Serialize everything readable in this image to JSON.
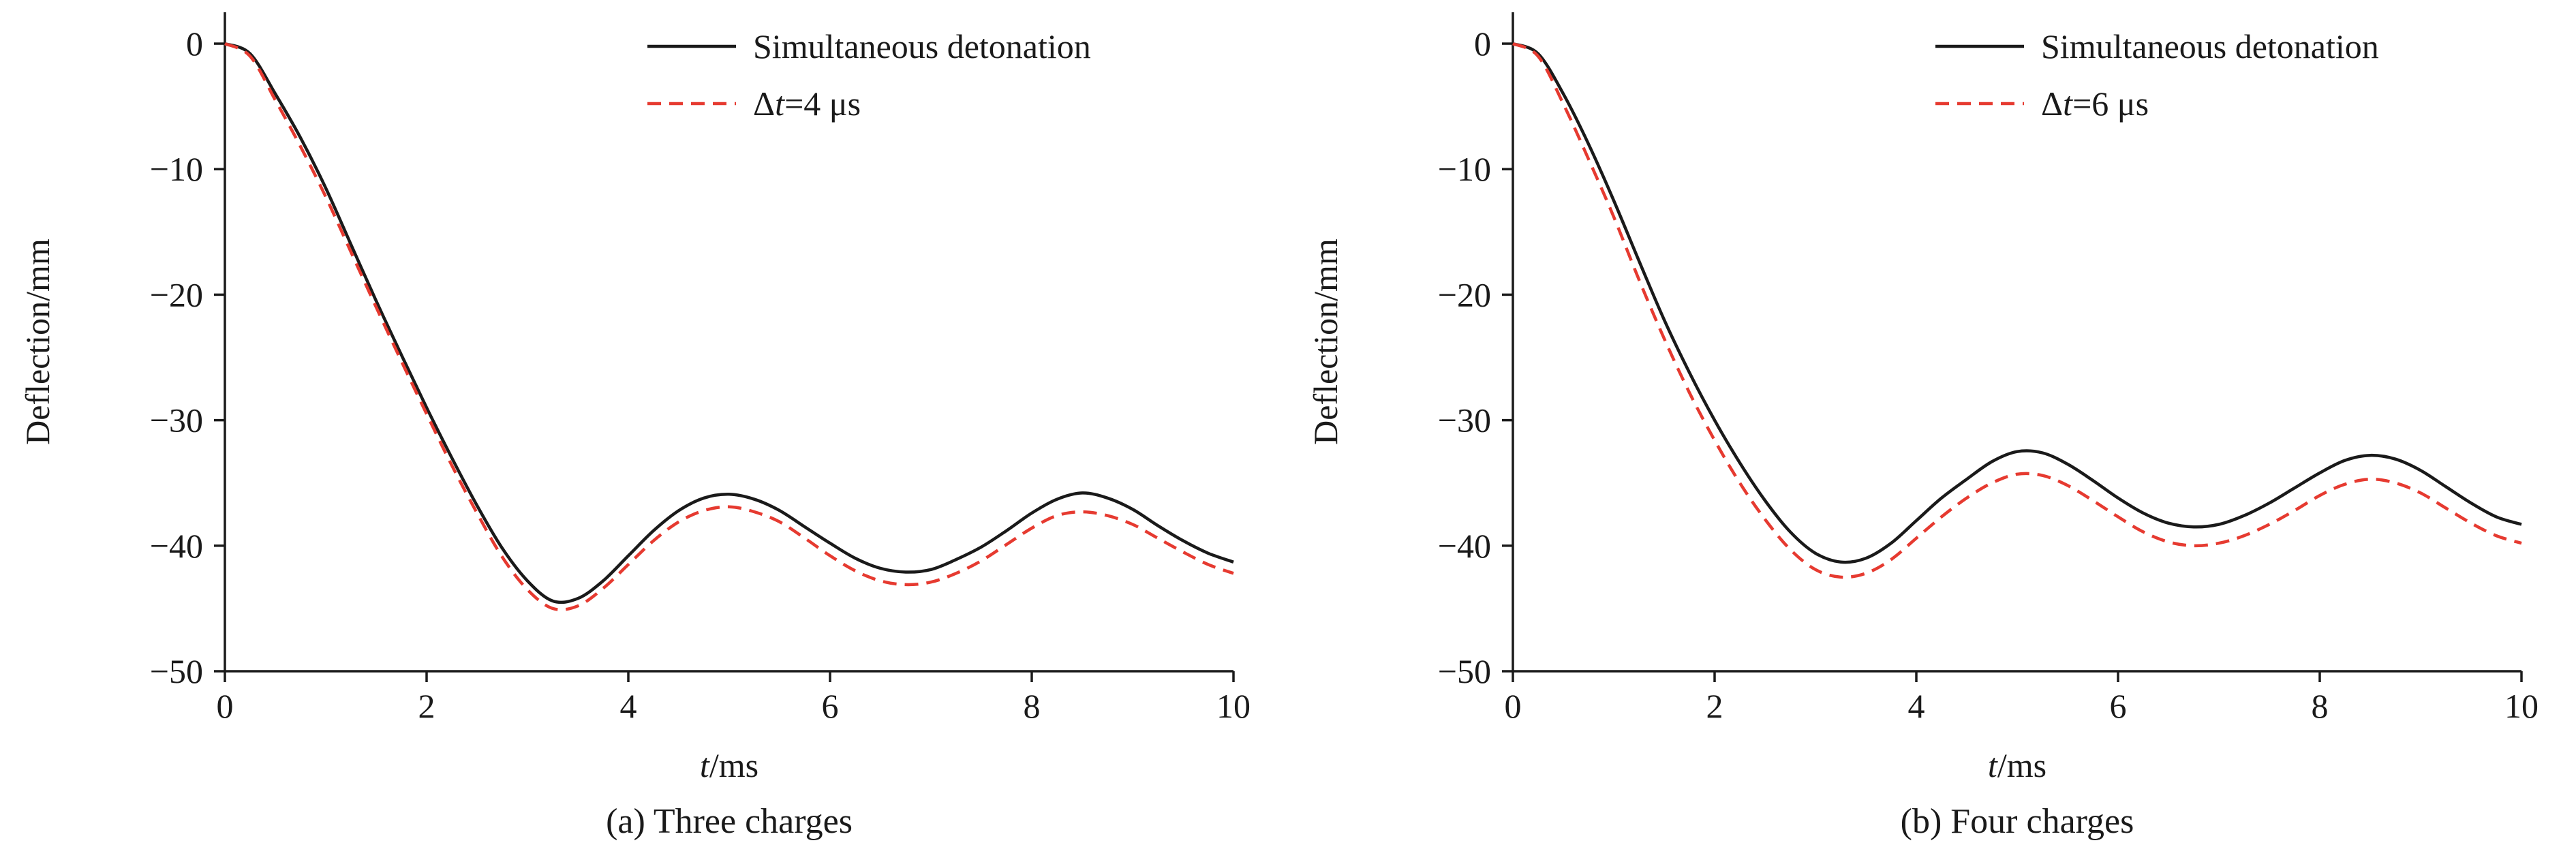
{
  "figure": {
    "background": "#ffffff",
    "axis_color": "#1a1a1a"
  },
  "chart_data": [
    {
      "type": "line",
      "caption": "(a) Three charges",
      "ylabel": "Deflection/mm",
      "xlabel": "t/ms",
      "xlabel_parts": [
        {
          "text": "t",
          "italic": true
        },
        {
          "text": "/ms",
          "italic": false
        }
      ],
      "xlim": [
        0,
        10
      ],
      "ylim": [
        -50,
        2.5
      ],
      "xticks": [
        0,
        2,
        4,
        6,
        8,
        10
      ],
      "yticks": [
        0,
        -10,
        -20,
        -30,
        -40,
        -50
      ],
      "grid": false,
      "legend_position": "top-right",
      "x": [
        0,
        0.25,
        0.5,
        0.75,
        1,
        1.25,
        1.5,
        1.75,
        2,
        2.25,
        2.5,
        2.75,
        3,
        3.25,
        3.5,
        3.75,
        4,
        4.25,
        4.5,
        4.75,
        5,
        5.25,
        5.5,
        5.75,
        6,
        6.25,
        6.5,
        6.75,
        7,
        7.25,
        7.5,
        7.75,
        8,
        8.25,
        8.5,
        8.75,
        9,
        9.25,
        9.5,
        9.75,
        10
      ],
      "series": [
        {
          "name": "Simultaneous detonation",
          "label_parts": [
            {
              "text": "Simultaneous detonation",
              "italic": false
            }
          ],
          "color": "#1a1a1a",
          "dash": null,
          "y": [
            0,
            -0.8,
            -4,
            -7.5,
            -11.5,
            -16,
            -20.5,
            -24.8,
            -29,
            -33,
            -36.8,
            -40.2,
            -42.8,
            -44.4,
            -44.2,
            -42.8,
            -40.8,
            -38.8,
            -37.2,
            -36.2,
            -35.9,
            -36.3,
            -37.2,
            -38.5,
            -39.8,
            -41,
            -41.8,
            -42.1,
            -41.9,
            -41.1,
            -40.1,
            -38.8,
            -37.4,
            -36.3,
            -35.8,
            -36.2,
            -37.1,
            -38.4,
            -39.6,
            -40.6,
            -41.3
          ]
        },
        {
          "name": "Δt=4 μs",
          "label_parts": [
            {
              "text": "Δ",
              "italic": false
            },
            {
              "text": "t",
              "italic": true
            },
            {
              "text": "=4 μs",
              "italic": false
            }
          ],
          "color": "#e63a30",
          "dash": "20 12",
          "y": [
            0,
            -1,
            -4.5,
            -8.2,
            -12.2,
            -16.6,
            -21,
            -25.3,
            -29.5,
            -33.6,
            -37.4,
            -40.9,
            -43.5,
            -45,
            -44.8,
            -43.4,
            -41.5,
            -39.6,
            -38.1,
            -37.2,
            -36.9,
            -37.3,
            -38.1,
            -39.4,
            -40.8,
            -42,
            -42.8,
            -43.1,
            -42.9,
            -42.2,
            -41.2,
            -39.9,
            -38.6,
            -37.6,
            -37.3,
            -37.6,
            -38.3,
            -39.4,
            -40.5,
            -41.5,
            -42.2
          ]
        }
      ]
    },
    {
      "type": "line",
      "caption": "(b) Four charges",
      "ylabel": "Deflection/mm",
      "xlabel": "t/ms",
      "xlabel_parts": [
        {
          "text": "t",
          "italic": true
        },
        {
          "text": "/ms",
          "italic": false
        }
      ],
      "xlim": [
        0,
        10
      ],
      "ylim": [
        -50,
        2.5
      ],
      "xticks": [
        0,
        2,
        4,
        6,
        8,
        10
      ],
      "yticks": [
        0,
        -10,
        -20,
        -30,
        -40,
        -50
      ],
      "grid": false,
      "legend_position": "top-right",
      "x": [
        0,
        0.25,
        0.5,
        0.75,
        1,
        1.25,
        1.5,
        1.75,
        2,
        2.25,
        2.5,
        2.75,
        3,
        3.25,
        3.5,
        3.75,
        4,
        4.25,
        4.5,
        4.75,
        5,
        5.25,
        5.5,
        5.75,
        6,
        6.25,
        6.5,
        6.75,
        7,
        7.25,
        7.5,
        7.75,
        8,
        8.25,
        8.5,
        8.75,
        9,
        9.25,
        9.5,
        9.75,
        10
      ],
      "series": [
        {
          "name": "Simultaneous detonation",
          "label_parts": [
            {
              "text": "Simultaneous detonation",
              "italic": false
            }
          ],
          "color": "#1a1a1a",
          "dash": null,
          "y": [
            0,
            -0.8,
            -4,
            -8,
            -12.5,
            -17.3,
            -22,
            -26.2,
            -30,
            -33.4,
            -36.4,
            -38.9,
            -40.6,
            -41.3,
            -41,
            -39.8,
            -38,
            -36.2,
            -34.7,
            -33.3,
            -32.5,
            -32.6,
            -33.5,
            -34.8,
            -36.2,
            -37.4,
            -38.2,
            -38.5,
            -38.3,
            -37.6,
            -36.6,
            -35.4,
            -34.2,
            -33.2,
            -32.8,
            -33.1,
            -34,
            -35.3,
            -36.6,
            -37.7,
            -38.3
          ]
        },
        {
          "name": "Δt=6 μs",
          "label_parts": [
            {
              "text": "Δ",
              "italic": false
            },
            {
              "text": "t",
              "italic": true
            },
            {
              "text": "=6 μs",
              "italic": false
            }
          ],
          "color": "#e63a30",
          "dash": "20 12",
          "y": [
            0,
            -1,
            -4.8,
            -9.2,
            -13.8,
            -18.8,
            -23.5,
            -27.8,
            -31.6,
            -35,
            -37.9,
            -40.3,
            -41.9,
            -42.5,
            -42.2,
            -41.1,
            -39.4,
            -37.7,
            -36.2,
            -35,
            -34.3,
            -34.4,
            -35.2,
            -36.4,
            -37.7,
            -38.9,
            -39.7,
            -40,
            -39.8,
            -39.2,
            -38.3,
            -37.2,
            -36,
            -35.1,
            -34.7,
            -35,
            -35.8,
            -37,
            -38.2,
            -39.2,
            -39.8
          ]
        }
      ]
    }
  ]
}
